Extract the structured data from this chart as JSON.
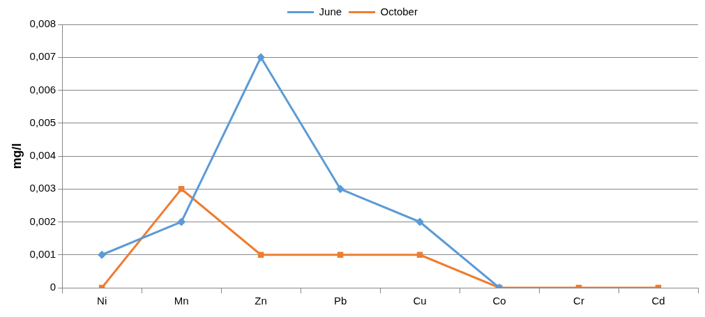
{
  "chart_data": {
    "type": "line",
    "ylabel": "mg/l",
    "categories": [
      "Ni",
      "Mn",
      "Zn",
      "Pb",
      "Cu",
      "Co",
      "Cr",
      "Cd"
    ],
    "series": [
      {
        "name": "June",
        "color": "#5b9bd5",
        "marker": "diamond",
        "values": [
          0.001,
          0.002,
          0.007,
          0.003,
          0.002,
          0,
          null,
          null
        ]
      },
      {
        "name": "October",
        "color": "#ed7d31",
        "marker": "square",
        "values": [
          0,
          0.003,
          0.001,
          0.001,
          0.001,
          0,
          0,
          0
        ]
      }
    ],
    "ylim": [
      0,
      0.008
    ],
    "yticks": [
      0,
      {
        "value": 0.001,
        "label": "0,001"
      },
      {
        "value": 0.002,
        "label": "0,002"
      },
      {
        "value": 0.003,
        "label": "0,003"
      },
      {
        "value": 0.004,
        "label": "0,004"
      },
      {
        "value": 0.005,
        "label": "0,005"
      },
      {
        "value": 0.006,
        "label": "0,006"
      },
      {
        "value": 0.007,
        "label": "0,007"
      },
      {
        "value": 0.008,
        "label": "0,008"
      }
    ],
    "grid": "y",
    "legend": "top",
    "line_style": "solid"
  }
}
